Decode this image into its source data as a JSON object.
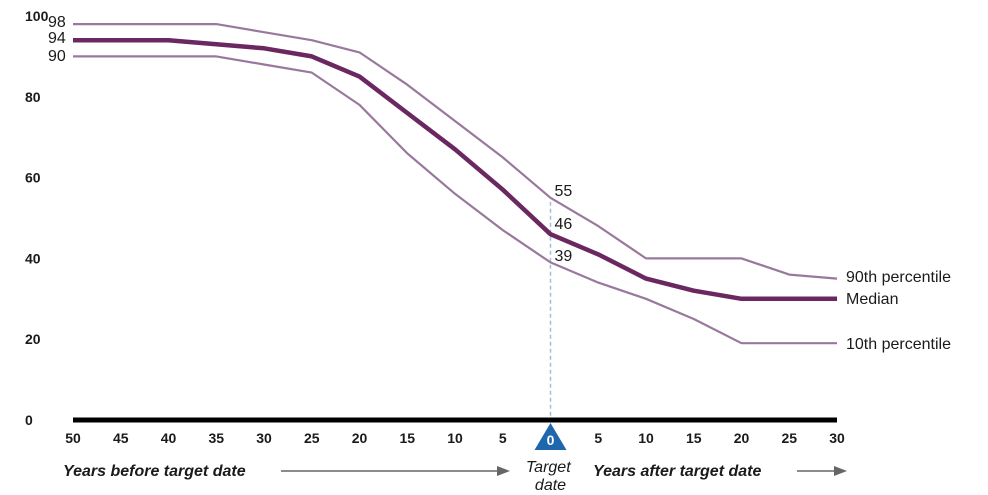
{
  "chart_data": {
    "type": "line",
    "x": [
      -50,
      -45,
      -40,
      -35,
      -30,
      -25,
      -20,
      -15,
      -10,
      -5,
      0,
      5,
      10,
      15,
      20,
      25,
      30
    ],
    "x_tick_labels": [
      "50",
      "45",
      "40",
      "35",
      "30",
      "25",
      "20",
      "15",
      "10",
      "5",
      "0",
      "5",
      "10",
      "15",
      "20",
      "25",
      "30"
    ],
    "y_ticks": [
      "0",
      "20",
      "40",
      "60",
      "80",
      "100"
    ],
    "ylim": [
      0,
      100
    ],
    "series": [
      {
        "name": "90th percentile",
        "values": [
          98,
          98,
          98,
          98,
          96,
          94,
          91,
          83,
          74,
          65,
          55,
          48,
          40,
          40,
          40,
          36,
          35
        ],
        "color": "#9a789e",
        "emphasis": false
      },
      {
        "name": "Median",
        "values": [
          94,
          94,
          94,
          93,
          92,
          90,
          85,
          76,
          67,
          57,
          46,
          41,
          35,
          32,
          30,
          30,
          30
        ],
        "color": "#6b2760",
        "emphasis": true
      },
      {
        "name": "10th percentile",
        "values": [
          90,
          90,
          90,
          90,
          88,
          86,
          78,
          66,
          56,
          47,
          39,
          34,
          30,
          25,
          19,
          19,
          19
        ],
        "color": "#9a789e",
        "emphasis": false
      }
    ],
    "start_labels": [
      "98",
      "94",
      "90"
    ],
    "target_labels": [
      "55",
      "46",
      "39"
    ],
    "target_marker_label": "0",
    "xlabel_left": "Years before target date",
    "xlabel_right": "Years after target date",
    "target_label_lines": [
      "Target",
      "date"
    ],
    "grid": false,
    "legend": "line-end labels at right"
  }
}
